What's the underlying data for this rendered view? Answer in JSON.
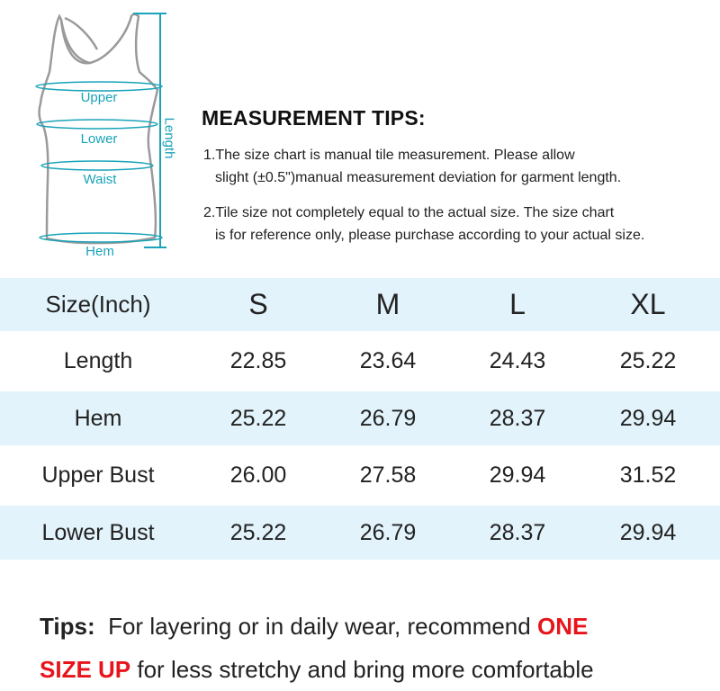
{
  "figure": {
    "labels": {
      "upper": "Upper",
      "lower": "Lower",
      "waist": "Waist",
      "hem": "Hem",
      "length": "Length"
    },
    "accent_color": "#1aa3b8"
  },
  "tips": {
    "title": "MEASUREMENT TIPS:",
    "items": [
      {
        "line1": "1.The size chart is manual tile measurement. Please allow",
        "line2": "slight (±0.5\")manual measurement deviation for garment length."
      },
      {
        "line1": "2.Tile size not completely equal to the actual size. The size chart",
        "line2": "is for reference only, please purchase according to your actual size."
      }
    ]
  },
  "table": {
    "header": {
      "label": "Size(Inch)",
      "sizes": [
        "S",
        "M",
        "L",
        "XL"
      ]
    },
    "rows": [
      {
        "label": "Length",
        "values": [
          "22.85",
          "23.64",
          "24.43",
          "25.22"
        ]
      },
      {
        "label": "Hem",
        "values": [
          "25.22",
          "26.79",
          "28.37",
          "29.94"
        ]
      },
      {
        "label": "Upper Bust",
        "values": [
          "26.00",
          "27.58",
          "29.94",
          "31.52"
        ]
      },
      {
        "label": "Lower Bust",
        "values": [
          "25.22",
          "26.79",
          "28.37",
          "29.94"
        ]
      }
    ],
    "band_color": "#e2f3fb"
  },
  "footer": {
    "prefix": "Tips:",
    "text1": "For layering or in daily wear, recommend",
    "highlight1": "ONE",
    "highlight2": "SIZE UP",
    "text2": "for less stretchy and bring more comfortable",
    "highlight_color": "#e8141b"
  }
}
